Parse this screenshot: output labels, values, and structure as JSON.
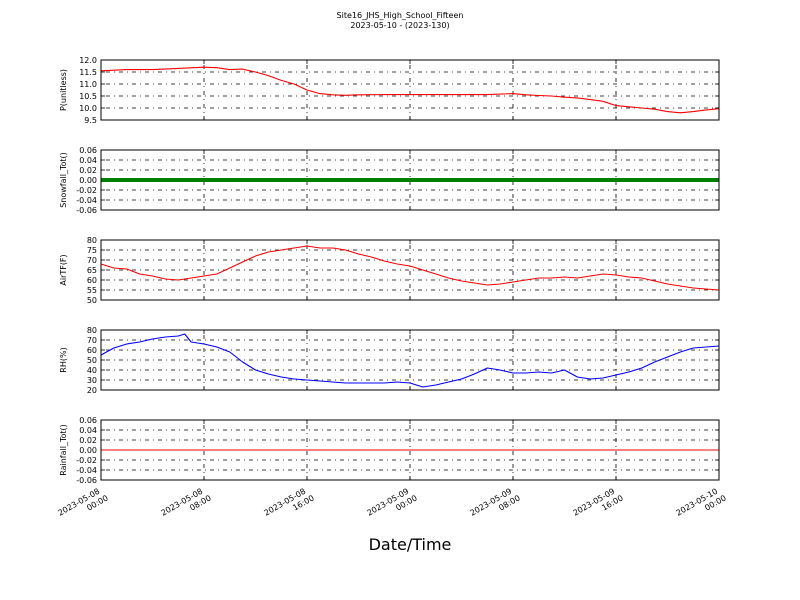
{
  "figure": {
    "title": "Site16_JHS_High_School_Fifteen",
    "subtitle": "2023-05-10 - (2023-130)",
    "xlabel": "Date/Time"
  },
  "chart_data": [
    {
      "type": "line",
      "ylabel": "P(unitless)",
      "ylim": [
        9.5,
        12.0
      ],
      "yticks": [
        "9.5",
        "10.0",
        "10.5",
        "11.0",
        "11.5",
        "12.0"
      ],
      "xlim": [
        "2023-05-08 00:00",
        "2023-05-10 00:00"
      ],
      "xticks": [
        "2023-05-08 00:00",
        "2023-05-08 08:00",
        "2023-05-08 16:00",
        "2023-05-09 00:00",
        "2023-05-09 08:00",
        "2023-05-09 16:00",
        "2023-05-10 00:00"
      ],
      "grid": true,
      "color": "#ff0000",
      "series": [
        {
          "x_hours": [
            0,
            2,
            4,
            6,
            8,
            9,
            10,
            11,
            12,
            13,
            14,
            15,
            16,
            17,
            18,
            19,
            20,
            22,
            24,
            26,
            28,
            30,
            32,
            33,
            34,
            35,
            36,
            37,
            38,
            39,
            40,
            41,
            42,
            43,
            44,
            45,
            46,
            47,
            48
          ],
          "values": [
            11.55,
            11.6,
            11.6,
            11.65,
            11.7,
            11.68,
            11.6,
            11.62,
            11.5,
            11.35,
            11.15,
            11.0,
            10.75,
            10.6,
            10.55,
            10.53,
            10.55,
            10.56,
            10.56,
            10.56,
            10.56,
            10.56,
            10.6,
            10.55,
            10.52,
            10.5,
            10.45,
            10.42,
            10.35,
            10.28,
            10.1,
            10.05,
            10.0,
            9.95,
            9.85,
            9.8,
            9.85,
            9.92,
            9.97
          ]
        }
      ]
    },
    {
      "type": "line",
      "ylabel": "Snowfall_Tot()",
      "ylim": [
        -0.06,
        0.06
      ],
      "yticks": [
        "-0.06",
        "-0.04",
        "-0.02",
        "0.00",
        "0.02",
        "0.04",
        "0.06"
      ],
      "xlim": [
        "2023-05-08 00:00",
        "2023-05-10 00:00"
      ],
      "xticks": [
        "2023-05-08 00:00",
        "2023-05-08 08:00",
        "2023-05-08 16:00",
        "2023-05-09 00:00",
        "2023-05-09 08:00",
        "2023-05-09 16:00",
        "2023-05-10 00:00"
      ],
      "grid": true,
      "color": "#008000",
      "series": [
        {
          "x_hours": [
            0,
            48
          ],
          "values": [
            0,
            0
          ]
        }
      ]
    },
    {
      "type": "line",
      "ylabel": "AirTF(F)",
      "ylim": [
        50,
        80
      ],
      "yticks": [
        "50",
        "55",
        "60",
        "65",
        "70",
        "75",
        "80"
      ],
      "xlim": [
        "2023-05-08 00:00",
        "2023-05-10 00:00"
      ],
      "xticks": [
        "2023-05-08 00:00",
        "2023-05-08 08:00",
        "2023-05-08 16:00",
        "2023-05-09 00:00",
        "2023-05-09 08:00",
        "2023-05-09 16:00",
        "2023-05-10 00:00"
      ],
      "grid": true,
      "color": "#ff0000",
      "series": [
        {
          "x_hours": [
            0,
            1,
            2,
            3,
            4,
            5,
            6,
            7,
            8,
            9,
            10,
            11,
            12,
            13,
            14,
            15,
            16,
            17,
            18,
            19,
            20,
            21,
            22,
            23,
            24,
            25,
            26,
            27,
            28,
            29,
            30,
            31,
            32,
            33,
            34,
            35,
            36,
            37,
            38,
            39,
            40,
            41,
            42,
            43,
            44,
            45,
            46,
            47,
            48
          ],
          "values": [
            68,
            66,
            65.5,
            63,
            62,
            60.5,
            60,
            61,
            62,
            63,
            66,
            69,
            72,
            74,
            75,
            76,
            77,
            76,
            76,
            75,
            73,
            71.5,
            69.5,
            68,
            67,
            65,
            63,
            61,
            59.5,
            58.5,
            57.5,
            58,
            59,
            60,
            61,
            61,
            61.5,
            61,
            62,
            63,
            62.5,
            61.5,
            61,
            59.5,
            58,
            57,
            56,
            55.5,
            55
          ]
        }
      ]
    },
    {
      "type": "line",
      "ylabel": "RH(%)",
      "ylim": [
        20,
        80
      ],
      "yticks": [
        "20",
        "30",
        "40",
        "50",
        "60",
        "70",
        "80"
      ],
      "xlim": [
        "2023-05-08 00:00",
        "2023-05-10 00:00"
      ],
      "xticks": [
        "2023-05-08 00:00",
        "2023-05-08 08:00",
        "2023-05-08 16:00",
        "2023-05-09 00:00",
        "2023-05-09 08:00",
        "2023-05-09 16:00",
        "2023-05-10 00:00"
      ],
      "grid": true,
      "color": "#0000ff",
      "series": [
        {
          "x_hours": [
            0,
            1,
            2,
            3,
            4,
            5,
            6,
            6.5,
            7,
            8,
            9,
            10,
            11,
            12,
            13,
            14,
            15,
            16,
            17,
            18,
            19,
            20,
            21,
            22,
            23,
            24,
            25,
            26,
            27,
            28,
            29,
            30,
            31,
            32,
            33,
            34,
            35,
            36,
            37,
            38,
            39,
            40,
            41,
            42,
            43,
            44,
            45,
            46,
            47,
            48
          ],
          "values": [
            55,
            62,
            66,
            68,
            71,
            73,
            74,
            76,
            68,
            66,
            63,
            58,
            48,
            40,
            36,
            33,
            31,
            30,
            29,
            28,
            27,
            27,
            27,
            27,
            28,
            27,
            23,
            25,
            28,
            31,
            36,
            42,
            40,
            37,
            37,
            38,
            37,
            40,
            33,
            31,
            32,
            35,
            38,
            42,
            48,
            53,
            58,
            62,
            63,
            64
          ]
        }
      ]
    },
    {
      "type": "line",
      "ylabel": "Rainfall_Tot()",
      "ylim": [
        -0.06,
        0.06
      ],
      "yticks": [
        "-0.06",
        "-0.04",
        "-0.02",
        "0.00",
        "0.02",
        "0.04",
        "0.06"
      ],
      "xlim": [
        "2023-05-08 00:00",
        "2023-05-10 00:00"
      ],
      "xticks": [
        "2023-05-08 00:00",
        "2023-05-08 08:00",
        "2023-05-08 16:00",
        "2023-05-09 00:00",
        "2023-05-09 08:00",
        "2023-05-09 16:00",
        "2023-05-10 00:00"
      ],
      "grid": true,
      "color": "#ff0000",
      "series": [
        {
          "x_hours": [
            0,
            48
          ],
          "values": [
            0,
            0
          ]
        }
      ]
    }
  ]
}
